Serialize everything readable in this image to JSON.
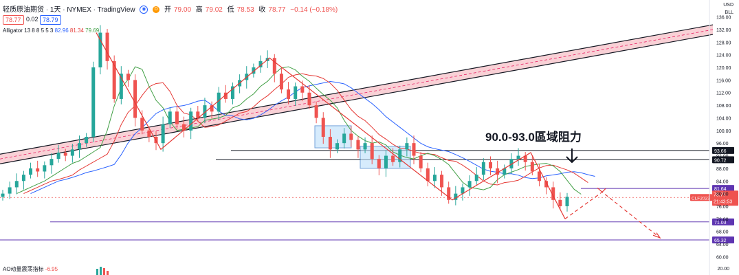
{
  "header": {
    "symbol_title": "轻质原油期货 · 1天 · NYMEX · TradingView",
    "open_label": "开",
    "open_value": "79.00",
    "high_label": "高",
    "high_value": "79.02",
    "low_label": "低",
    "low_value": "78.53",
    "close_label": "收",
    "close_value": "78.77",
    "change_value": "−0.14 (−0.18%)",
    "sell_price": "78.77",
    "spread": "0.02",
    "buy_price": "78.79",
    "eye_glyph": "◉",
    "d_glyph": "D"
  },
  "indicator": {
    "name": "Alligator 13 8 8 5 5 3",
    "jaw": "82.96",
    "teeth": "81.34",
    "lips": "79.69"
  },
  "ao_indicator": {
    "name": "AO动量震荡指标",
    "value": "-6.95"
  },
  "axis": {
    "currency": "USD",
    "unit": "BLL",
    "bottom_tick": "20.00"
  },
  "annotation_text": "90.0-93.0區域阻力",
  "colors": {
    "up": "#26a69a",
    "down": "#ef5350",
    "trend": "#e53935",
    "channel_fill": "#f8c9cf",
    "level": "#000000",
    "purple": "#5e35b1",
    "jaw": "#2962ff",
    "teeth": "#e53935",
    "lips": "#43a047",
    "box_fill": "#bbdefb"
  },
  "chart_data": {
    "type": "candlestick",
    "y_ticks": [
      "60.00",
      "64.00",
      "68.00",
      "72.00",
      "76.00",
      "80.00",
      "84.00",
      "88.00",
      "92.00",
      "96.00",
      "100.00",
      "104.00",
      "108.00",
      "112.00",
      "116.00",
      "120.00",
      "124.00",
      "128.00",
      "132.00",
      "136.00"
    ],
    "ylim": [
      59,
      137
    ],
    "last_price": "78.77",
    "symbol_label": "CLF2023",
    "countdown": "21:43:53",
    "price_levels": [
      {
        "label": "93.66",
        "value": 93.66,
        "color": "#131722"
      },
      {
        "label": "90.72",
        "value": 90.72,
        "color": "#131722"
      },
      {
        "label": "81.64",
        "value": 81.64,
        "color": "#5e35b1"
      },
      {
        "label": "71.03",
        "value": 71.03,
        "color": "#5e35b1"
      },
      {
        "label": "65.32",
        "value": 65.32,
        "color": "#5e35b1"
      }
    ],
    "closes": [
      80,
      82,
      84,
      86,
      88,
      87,
      89,
      91,
      93,
      92,
      94,
      96,
      98,
      120,
      131,
      122,
      110,
      118,
      116,
      104,
      100,
      98,
      96,
      102,
      106,
      102,
      100,
      106,
      104,
      108,
      106,
      112,
      110,
      114,
      116,
      118,
      120,
      122,
      123,
      118,
      113,
      110,
      114,
      112,
      108,
      104,
      98,
      94,
      96,
      99,
      97,
      94,
      96,
      91,
      88,
      92,
      90,
      94,
      96,
      92,
      88,
      84,
      86,
      82,
      78,
      80,
      82,
      84,
      86,
      90,
      88,
      86,
      88,
      91,
      92,
      90,
      87,
      84,
      82,
      78,
      76,
      79
    ]
  }
}
